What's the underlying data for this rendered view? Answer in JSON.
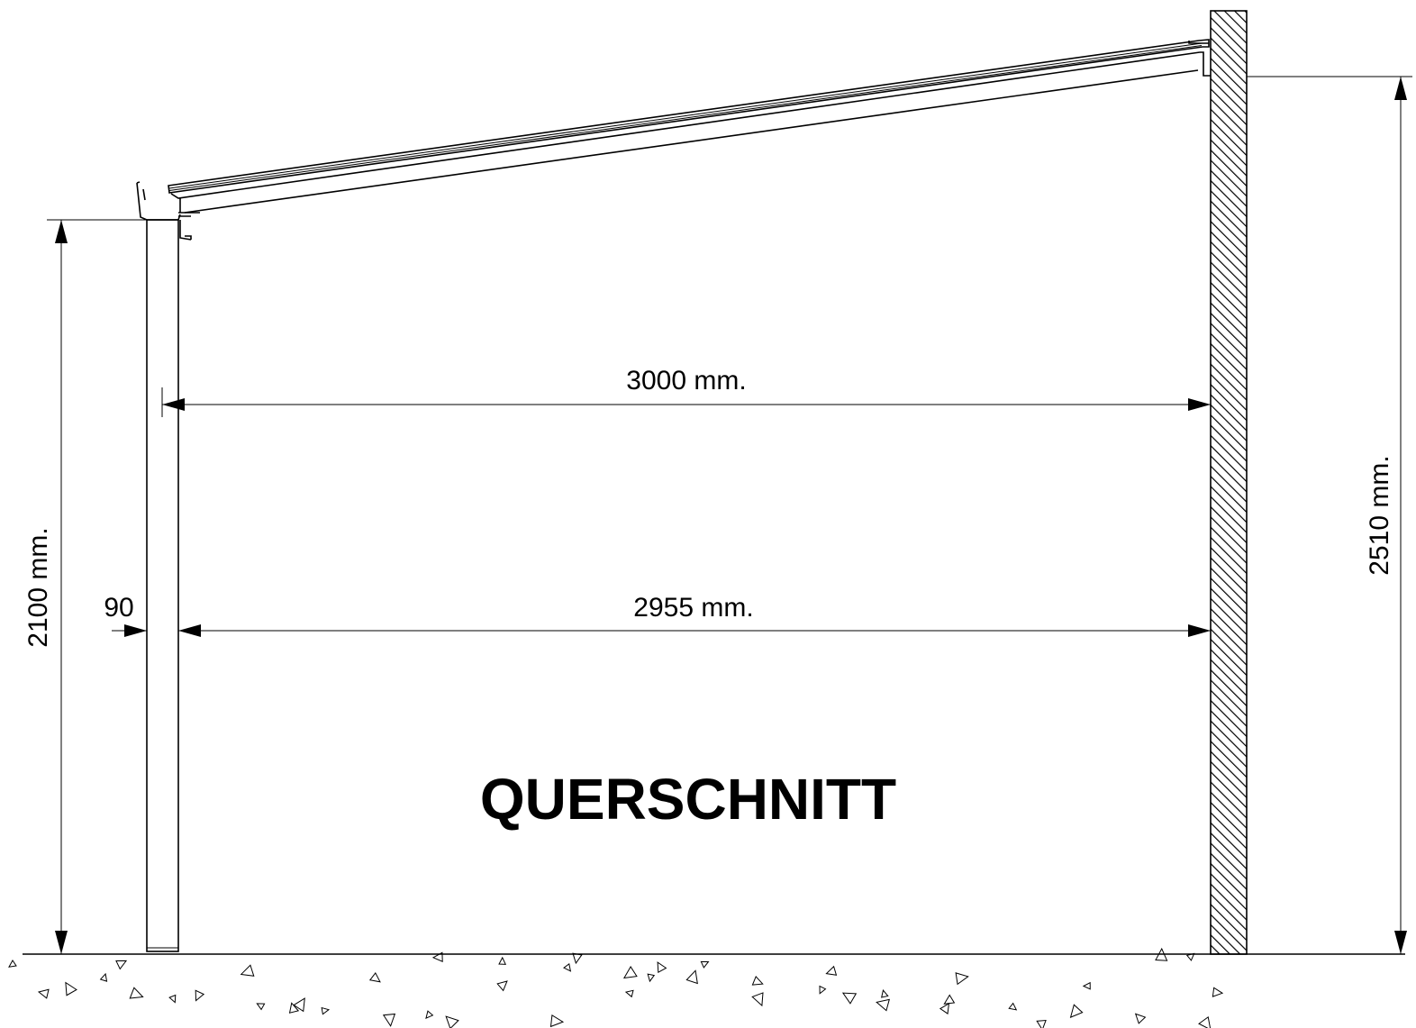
{
  "drawing": {
    "title": "QUERSCHNITT",
    "dimensions": {
      "width_total": "3000 mm.",
      "width_inner": "2955 mm.",
      "post_width": "90",
      "height_front": "2100 mm.",
      "height_wall": "2510 mm."
    }
  }
}
